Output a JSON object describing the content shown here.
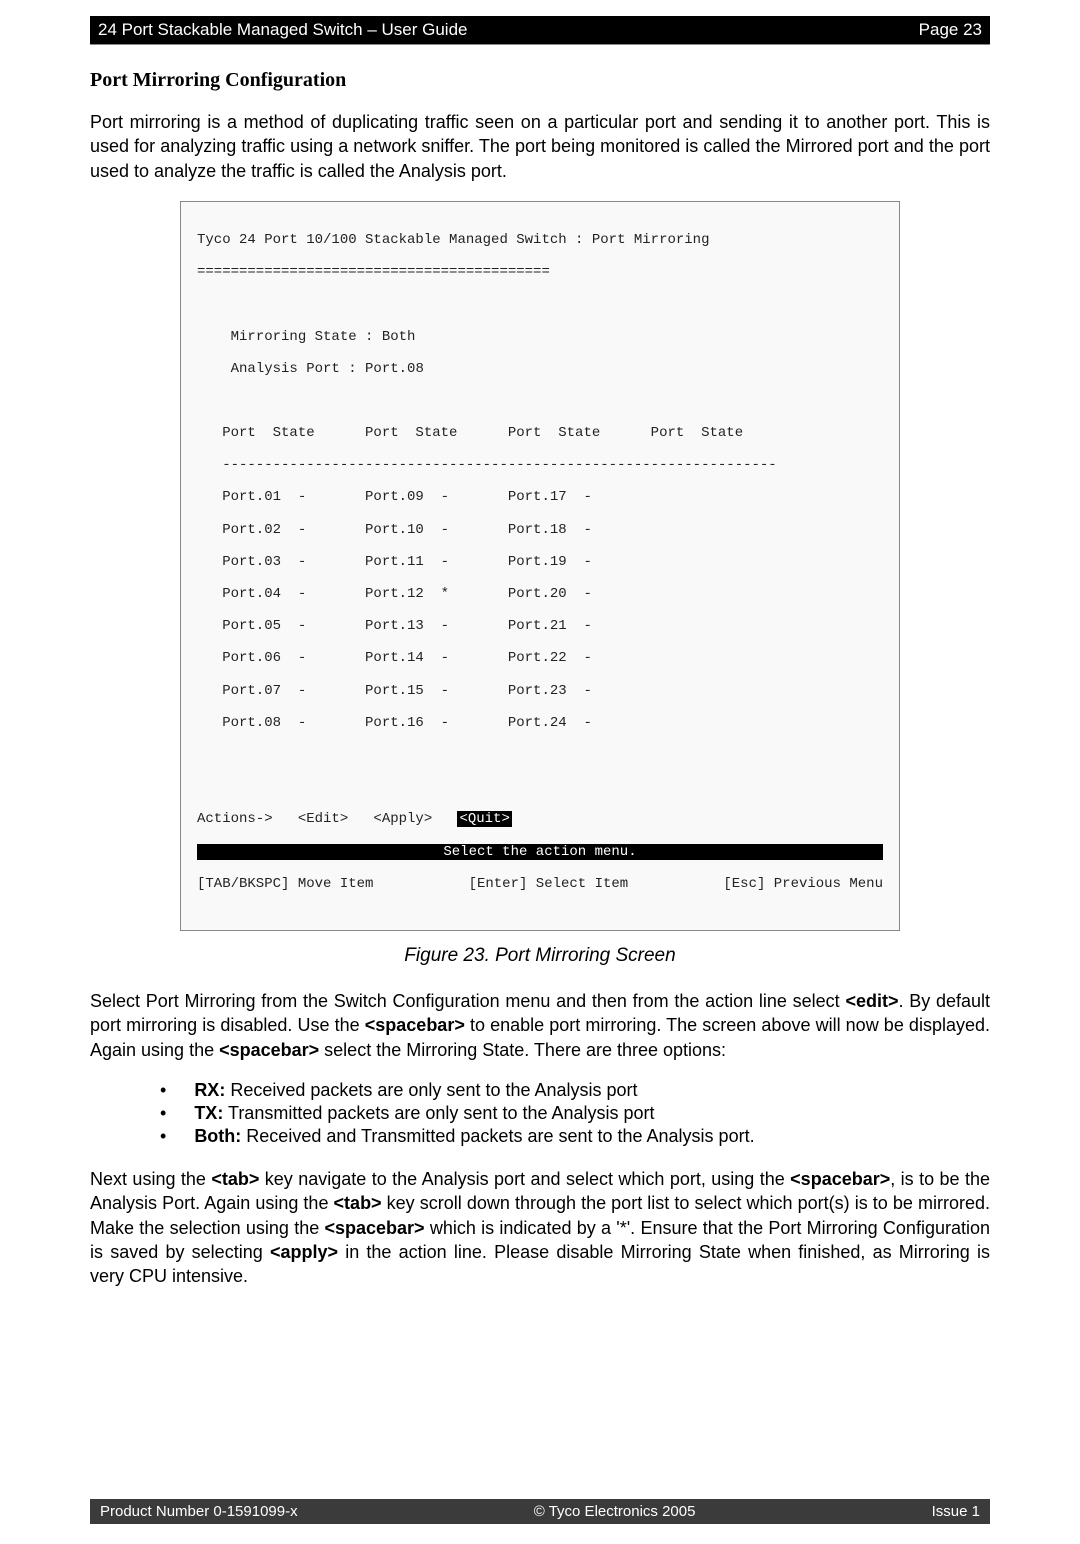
{
  "header": {
    "left": "24 Port Stackable Managed Switch – User Guide",
    "right": "Page 23"
  },
  "section_title": "Port Mirroring Configuration",
  "intro_paragraph": "Port mirroring is a method of duplicating traffic seen on a particular port and sending it to another port. This is used for analyzing traffic using a network sniffer. The port being monitored is called the Mirrored port and the port used to analyze the traffic is called the Analysis port.",
  "terminal": {
    "title": "Tyco 24 Port 10/100 Stackable Managed Switch : Port Mirroring",
    "divider": "==========================================",
    "state_line1": "Mirroring State : Both",
    "state_line2": "Analysis Port : Port.08",
    "col_header": "   Port  State      Port  State      Port  State      Port  State",
    "col_divider": "   ------------------------------------------------------------------",
    "rows": [
      "   Port.01  -       Port.09  -       Port.17  -",
      "   Port.02  -       Port.10  -       Port.18  -",
      "   Port.03  -       Port.11  -       Port.19  -",
      "   Port.04  -       Port.12  *       Port.20  -",
      "   Port.05  -       Port.13  -       Port.21  -",
      "   Port.06  -       Port.14  -       Port.22  -",
      "   Port.07  -       Port.15  -       Port.23  -",
      "   Port.08  -       Port.16  -       Port.24  -"
    ],
    "actions_prefix": "Actions->   <Edit>   <Apply>   ",
    "actions_quit": "<Quit>",
    "status_mid": "Select the action menu.",
    "bottom_left": "[TAB/BKSPC] Move Item",
    "bottom_mid": "[Enter] Select Item",
    "bottom_right": "[Esc] Previous Menu"
  },
  "caption": "Figure 23. Port Mirroring Screen",
  "para2_plain": "Select Port Mirroring from the Switch Configuration menu and then from the action line select ",
  "para2_b1": "<edit>",
  "para2_after_b1": ". By default port mirroring is disabled. Use the ",
  "para2_b2": "<spacebar>",
  "para2_after_b2": " to enable port mirroring. The screen above will now be displayed. Again using the ",
  "para2_b3": "<spacebar>",
  "para2_after_b3": " select the Mirroring State. There are three options:",
  "bullets": {
    "rx_b": "RX:",
    "rx_t": " Received packets are only sent to the Analysis port",
    "tx_b": "TX:",
    "tx_t": " Transmitted packets are only sent to the Analysis port",
    "both_b": "Both:",
    "both_t": " Received and Transmitted packets are sent to the Analysis port."
  },
  "para3_1": "Next using the ",
  "para3_b1": "<tab>",
  "para3_2": " key navigate to the Analysis port and select which port, using the ",
  "para3_b2": "<spacebar>",
  "para3_3": ", is to be the Analysis Port. Again using the ",
  "para3_b3": "<tab>",
  "para3_4": " key scroll down through the port list to select which port(s) is to be mirrored. Make the selection using the ",
  "para3_b4": "<spacebar>",
  "para3_5": " which is indicated by a '*'. Ensure that the Port Mirroring Configuration is saved by selecting ",
  "para3_b5": "<apply>",
  "para3_6": " in the action line. Please disable Mirroring State when finished, as Mirroring is very CPU intensive.",
  "footer": {
    "left": "Product Number 0-1591099-x",
    "mid": "© Tyco Electronics 2005",
    "right": "Issue 1"
  }
}
